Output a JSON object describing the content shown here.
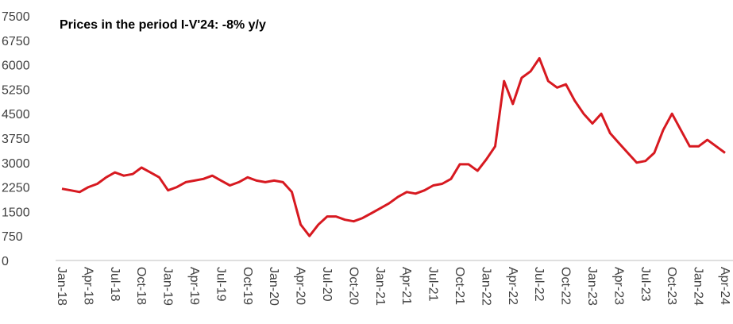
{
  "chart_data": {
    "type": "line",
    "title": "Prices in the period I-V'24: -8% y/y",
    "categories": [
      "Jan-18",
      null,
      null,
      "Apr-18",
      null,
      null,
      "Jul-18",
      null,
      null,
      "Oct-18",
      null,
      null,
      "Jan-19",
      null,
      null,
      "Apr-19",
      null,
      null,
      "Jul-19",
      null,
      null,
      "Oct-19",
      null,
      null,
      "Jan-20",
      null,
      null,
      "Apr-20",
      null,
      null,
      "Jul-20",
      null,
      null,
      "Oct-20",
      null,
      null,
      "Jan-21",
      null,
      null,
      "Apr-21",
      null,
      null,
      "Jul-21",
      null,
      null,
      "Oct-21",
      null,
      null,
      "Jan-22",
      null,
      null,
      "Apr-22",
      null,
      null,
      "Jul-22",
      null,
      null,
      "Oct-22",
      null,
      null,
      "Jan-23",
      null,
      null,
      "Apr-23",
      null,
      null,
      "Jul-23",
      null,
      null,
      "Oct-23",
      null,
      null,
      "Jan-24",
      null,
      null,
      "Apr-24"
    ],
    "series": [
      {
        "color": "#d71920",
        "values": [
          2200,
          2150,
          2100,
          2250,
          2350,
          2550,
          2700,
          2600,
          2650,
          2850,
          2700,
          2550,
          2150,
          2250,
          2400,
          2450,
          2500,
          2600,
          2450,
          2300,
          2400,
          2550,
          2450,
          2400,
          2450,
          2400,
          2100,
          1100,
          750,
          1100,
          1350,
          1350,
          1250,
          1200,
          1300,
          1450,
          1600,
          1750,
          1950,
          2100,
          2050,
          2150,
          2300,
          2350,
          2500,
          2950,
          2950,
          2750,
          3100,
          3500,
          5500,
          4800,
          5600,
          5800,
          6200,
          5500,
          5300,
          5400,
          4900,
          4500,
          4200,
          4500,
          3900,
          3600,
          3300,
          3000,
          3050,
          3300,
          4000,
          4500,
          4000,
          3500,
          3500,
          3700,
          3500,
          3300
        ]
      }
    ],
    "ylim": [
      0,
      7500
    ],
    "yticks": [
      0,
      750,
      1500,
      2250,
      3000,
      3750,
      4500,
      5250,
      6000,
      6750,
      7500
    ]
  }
}
